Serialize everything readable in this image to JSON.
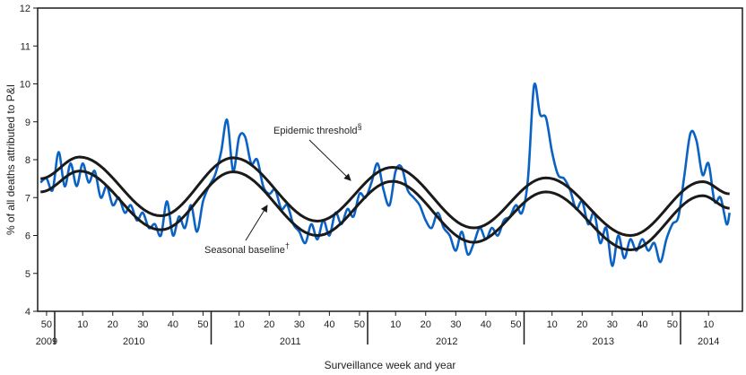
{
  "chart_data": {
    "type": "line",
    "title": "",
    "xlabel": "Surveillance week and year",
    "ylabel": "% of all deaths attributed to P&I",
    "ylim": [
      4,
      12
    ],
    "yticks": [
      4,
      5,
      6,
      7,
      8,
      9,
      10,
      11,
      12
    ],
    "xlim": [
      "2009-47",
      "2014-21"
    ],
    "week_ticks": [
      {
        "year": 2009,
        "week": 50
      },
      {
        "year": 2010,
        "week": 10
      },
      {
        "year": 2010,
        "week": 20
      },
      {
        "year": 2010,
        "week": 30
      },
      {
        "year": 2010,
        "week": 40
      },
      {
        "year": 2010,
        "week": 50
      },
      {
        "year": 2011,
        "week": 10
      },
      {
        "year": 2011,
        "week": 20
      },
      {
        "year": 2011,
        "week": 30
      },
      {
        "year": 2011,
        "week": 40
      },
      {
        "year": 2011,
        "week": 50
      },
      {
        "year": 2012,
        "week": 10
      },
      {
        "year": 2012,
        "week": 20
      },
      {
        "year": 2012,
        "week": 30
      },
      {
        "year": 2012,
        "week": 40
      },
      {
        "year": 2012,
        "week": 50
      },
      {
        "year": 2013,
        "week": 10
      },
      {
        "year": 2013,
        "week": 20
      },
      {
        "year": 2013,
        "week": 30
      },
      {
        "year": 2013,
        "week": 40
      },
      {
        "year": 2013,
        "week": 50
      },
      {
        "year": 2014,
        "week": 10
      }
    ],
    "year_labels": [
      "2009",
      "2010",
      "2011",
      "2012",
      "2013",
      "2014"
    ],
    "grid": false,
    "colors": {
      "observed": "#0a62c4",
      "baseline": "#1a1a1a",
      "threshold": "#1a1a1a"
    },
    "annotations": {
      "threshold": {
        "text": "Epidemic threshold",
        "mark": "§"
      },
      "baseline": {
        "text": "Seasonal baseline",
        "mark": "†"
      }
    },
    "series": [
      {
        "key": "observed",
        "x": [
          "2009-48",
          "2009-50",
          "2009-52",
          "2010-02",
          "2010-04",
          "2010-06",
          "2010-08",
          "2010-10",
          "2010-12",
          "2010-14",
          "2010-16",
          "2010-18",
          "2010-20",
          "2010-22",
          "2010-24",
          "2010-26",
          "2010-28",
          "2010-30",
          "2010-32",
          "2010-34",
          "2010-36",
          "2010-38",
          "2010-40",
          "2010-42",
          "2010-44",
          "2010-46",
          "2010-48",
          "2010-50",
          "2010-52",
          "2011-02",
          "2011-04",
          "2011-06",
          "2011-08",
          "2011-10",
          "2011-12",
          "2011-14",
          "2011-16",
          "2011-18",
          "2011-20",
          "2011-22",
          "2011-24",
          "2011-26",
          "2011-28",
          "2011-30",
          "2011-32",
          "2011-34",
          "2011-36",
          "2011-38",
          "2011-40",
          "2011-42",
          "2011-44",
          "2011-46",
          "2011-48",
          "2011-50",
          "2011-52",
          "2012-02",
          "2012-04",
          "2012-06",
          "2012-08",
          "2012-10",
          "2012-12",
          "2012-14",
          "2012-16",
          "2012-18",
          "2012-20",
          "2012-22",
          "2012-24",
          "2012-26",
          "2012-28",
          "2012-30",
          "2012-32",
          "2012-34",
          "2012-36",
          "2012-38",
          "2012-40",
          "2012-42",
          "2012-44",
          "2012-46",
          "2012-48",
          "2012-50",
          "2012-52",
          "2013-02",
          "2013-04",
          "2013-06",
          "2013-08",
          "2013-10",
          "2013-12",
          "2013-14",
          "2013-16",
          "2013-18",
          "2013-20",
          "2013-22",
          "2013-24",
          "2013-26",
          "2013-28",
          "2013-30",
          "2013-32",
          "2013-34",
          "2013-36",
          "2013-38",
          "2013-40",
          "2013-42",
          "2013-44",
          "2013-46",
          "2013-48",
          "2013-50",
          "2013-52",
          "2014-02",
          "2014-04",
          "2014-06",
          "2014-08",
          "2014-10",
          "2014-12",
          "2014-14",
          "2014-16",
          "2014-17"
        ],
        "y": [
          7.4,
          7.5,
          7.2,
          8.2,
          7.3,
          7.9,
          7.3,
          7.9,
          7.4,
          7.7,
          7.0,
          7.3,
          6.8,
          7.0,
          6.6,
          6.8,
          6.4,
          6.6,
          6.2,
          6.3,
          6.0,
          6.9,
          6.0,
          6.5,
          6.2,
          6.8,
          6.1,
          6.9,
          7.3,
          7.6,
          8.2,
          9.05,
          7.7,
          8.6,
          8.6,
          7.9,
          8.0,
          7.3,
          7.1,
          7.2,
          6.7,
          6.8,
          6.3,
          6.1,
          5.8,
          6.3,
          5.9,
          6.4,
          6.0,
          6.6,
          6.3,
          6.7,
          6.5,
          7.1,
          7.0,
          7.4,
          7.9,
          7.2,
          6.8,
          7.7,
          7.8,
          7.2,
          7.0,
          6.8,
          6.4,
          6.2,
          6.6,
          6.2,
          6.0,
          5.6,
          6.1,
          5.5,
          5.8,
          6.2,
          5.9,
          6.2,
          6.0,
          6.4,
          6.5,
          6.8,
          6.6,
          7.5,
          9.95,
          9.2,
          9.1,
          8.2,
          7.6,
          7.5,
          7.2,
          6.7,
          6.9,
          6.3,
          6.6,
          5.8,
          6.2,
          5.2,
          6.0,
          5.4,
          5.9,
          5.6,
          5.9,
          5.6,
          5.8,
          5.3,
          5.9,
          6.3,
          6.5,
          7.6,
          8.7,
          8.5,
          7.6,
          7.9,
          6.9,
          7.0,
          6.3,
          6.6
        ]
      },
      {
        "key": "threshold",
        "x": [
          "2009-48",
          "2010-09",
          "2010-36",
          "2011-08",
          "2011-36",
          "2012-09",
          "2012-36",
          "2013-08",
          "2013-36",
          "2014-08",
          "2014-17"
        ],
        "y": [
          7.5,
          8.07,
          6.52,
          8.05,
          6.38,
          7.8,
          6.2,
          7.52,
          6.0,
          7.42,
          7.1
        ]
      },
      {
        "key": "baseline",
        "x": [
          "2009-48",
          "2010-09",
          "2010-36",
          "2011-08",
          "2011-36",
          "2012-09",
          "2012-36",
          "2013-08",
          "2013-36",
          "2014-08",
          "2014-17"
        ],
        "y": [
          7.15,
          7.7,
          6.15,
          7.68,
          6.0,
          7.43,
          5.82,
          7.15,
          5.62,
          7.05,
          6.72
        ]
      }
    ]
  }
}
